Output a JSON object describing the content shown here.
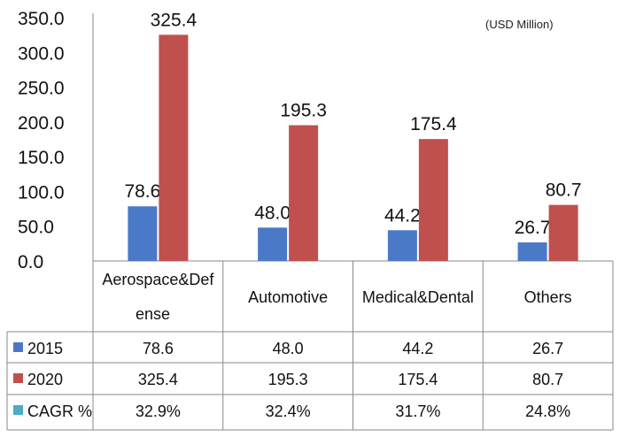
{
  "unit_note": "(USD Million)",
  "colors": {
    "2015": "#4a7ac7",
    "2020": "#c0504d",
    "CAGR": "#4bacc6"
  },
  "chart_data": {
    "type": "bar",
    "categories": [
      "Aerospace&Defense",
      "Automotive",
      "Medical&Dental",
      "Others"
    ],
    "category_lines": [
      [
        "Aerospace&Def",
        "ense"
      ],
      [
        "Automotive"
      ],
      [
        "Medical&Dental"
      ],
      [
        "Others"
      ]
    ],
    "series": [
      {
        "name": "2015",
        "values": [
          78.6,
          48.0,
          44.2,
          26.7
        ],
        "labels": [
          "78.6",
          "48.0",
          "44.2",
          "26.7"
        ]
      },
      {
        "name": "2020",
        "values": [
          325.4,
          195.3,
          175.4,
          80.7
        ],
        "labels": [
          "325.4",
          "195.3",
          "175.4",
          "80.7"
        ]
      }
    ],
    "ylim": [
      0,
      350
    ],
    "yticks": [
      "0.0",
      "50.0",
      "100.0",
      "150.0",
      "200.0",
      "250.0",
      "300.0",
      "350.0"
    ],
    "table_rows": [
      {
        "label": "2015",
        "values": [
          "78.6",
          "48.0",
          "44.2",
          "26.7"
        ]
      },
      {
        "label": "2020",
        "values": [
          "325.4",
          "195.3",
          "175.4",
          "80.7"
        ]
      },
      {
        "label": "CAGR %",
        "values": [
          "32.9%",
          "32.4%",
          "31.7%",
          "24.8%"
        ]
      }
    ]
  }
}
